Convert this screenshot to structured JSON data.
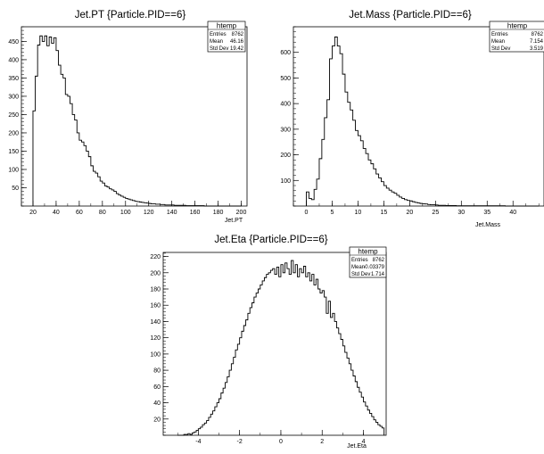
{
  "panels": [
    {
      "title": "Jet.PT {Particle.PID==6}",
      "xlabel": "Jet.PT",
      "ylabel": "",
      "stats": {
        "name": "htemp",
        "rows": [
          {
            "label": "Entries",
            "value": "8762"
          },
          {
            "label": "Mean",
            "value": "46.16"
          },
          {
            "label": "Std Dev",
            "value": "19.42"
          }
        ]
      }
    },
    {
      "title": "Jet.Mass {Particle.PID==6}",
      "xlabel": "Jet.Mass",
      "ylabel": "",
      "stats": {
        "name": "htemp",
        "rows": [
          {
            "label": "Entries",
            "value": "8762"
          },
          {
            "label": "Mean",
            "value": "7.154"
          },
          {
            "label": "Std Dev",
            "value": "3.519"
          }
        ]
      }
    },
    {
      "title": "Jet.Eta {Particle.PID==6}",
      "xlabel": "Jet.Eta",
      "ylabel": "",
      "stats": {
        "name": "htemp",
        "rows": [
          {
            "label": "Entries",
            "value": "8762"
          },
          {
            "label": "Mean",
            "value": "-0.03379"
          },
          {
            "label": "Std Dev",
            "value": "1.714"
          }
        ]
      }
    }
  ],
  "chart_data": [
    {
      "type": "histogram",
      "title": "Jet.PT {Particle.PID==6}",
      "xlabel": "Jet.PT",
      "xlim": [
        10,
        205
      ],
      "ylim": [
        0,
        490
      ],
      "xticks": [
        20,
        40,
        60,
        80,
        100,
        120,
        140,
        160,
        180,
        200
      ],
      "yticks": [
        50,
        100,
        150,
        200,
        250,
        300,
        350,
        400,
        450
      ],
      "bin_edges_start": 20,
      "bin_width": 2,
      "counts": [
        260,
        355,
        440,
        465,
        450,
        465,
        438,
        462,
        445,
        460,
        425,
        385,
        360,
        350,
        305,
        300,
        280,
        250,
        235,
        200,
        180,
        175,
        165,
        150,
        135,
        110,
        95,
        90,
        80,
        68,
        63,
        55,
        52,
        47,
        44,
        40,
        34,
        30,
        27,
        24,
        21,
        19,
        17,
        15,
        13,
        12,
        11,
        10,
        9,
        8,
        7,
        6,
        6,
        5,
        5,
        4,
        4,
        3,
        3,
        3,
        3,
        2,
        2,
        2,
        2,
        2,
        1,
        1,
        1,
        1,
        1,
        1,
        1,
        1,
        0,
        0,
        0,
        0,
        0,
        0,
        0,
        0,
        0,
        0,
        0,
        0,
        0,
        0,
        0,
        0
      ]
    },
    {
      "type": "histogram",
      "title": "Jet.Mass {Particle.PID==6}",
      "xlabel": "Jet.Mass",
      "xlim": [
        -2.5,
        46
      ],
      "ylim": [
        0,
        700
      ],
      "xticks": [
        0,
        5,
        10,
        15,
        20,
        25,
        30,
        35,
        40
      ],
      "yticks": [
        100,
        200,
        300,
        400,
        500,
        600
      ],
      "bin_edges_start": 0,
      "bin_width": 0.5,
      "counts": [
        55,
        30,
        25,
        65,
        105,
        185,
        260,
        345,
        415,
        575,
        625,
        660,
        625,
        595,
        515,
        445,
        405,
        375,
        335,
        295,
        275,
        255,
        225,
        205,
        180,
        165,
        145,
        125,
        110,
        95,
        80,
        70,
        62,
        55,
        50,
        42,
        35,
        30,
        25,
        22,
        20,
        17,
        14,
        12,
        10,
        9,
        8,
        6,
        5,
        5,
        4,
        3,
        3,
        3,
        2,
        2,
        2,
        2,
        1,
        1,
        1,
        1,
        1,
        1,
        1,
        1,
        1,
        1,
        1,
        1,
        1,
        1,
        1,
        1,
        1,
        1,
        1,
        0,
        0,
        0,
        0,
        0,
        0,
        0,
        0,
        0,
        0,
        0,
        0,
        0
      ]
    },
    {
      "type": "histogram",
      "title": "Jet.Eta {Particle.PID==6}",
      "xlabel": "Jet.Eta",
      "xlim": [
        -5.7,
        5.1
      ],
      "ylim": [
        0,
        225
      ],
      "xticks": [
        -4,
        -2,
        0,
        2,
        4
      ],
      "yticks": [
        20,
        40,
        60,
        80,
        100,
        120,
        140,
        160,
        180,
        200,
        220
      ],
      "bin_edges_start": -5.0,
      "bin_width": 0.1,
      "counts": [
        0,
        0,
        0,
        1,
        1,
        2,
        1,
        3,
        4,
        6,
        8,
        10,
        13,
        15,
        18,
        22,
        26,
        30,
        35,
        40,
        45,
        52,
        58,
        65,
        72,
        80,
        88,
        96,
        105,
        112,
        120,
        128,
        135,
        142,
        150,
        157,
        163,
        170,
        175,
        180,
        185,
        190,
        194,
        198,
        200,
        203,
        205,
        198,
        207,
        195,
        210,
        200,
        212,
        205,
        198,
        215,
        200,
        210,
        195,
        205,
        200,
        208,
        195,
        200,
        190,
        198,
        185,
        192,
        180,
        175,
        178,
        170,
        150,
        165,
        145,
        150,
        140,
        132,
        125,
        118,
        110,
        102,
        95,
        88,
        80,
        73,
        66,
        59,
        53,
        47,
        41,
        36,
        31,
        27,
        23,
        19,
        16,
        13,
        11,
        9
      ]
    }
  ]
}
